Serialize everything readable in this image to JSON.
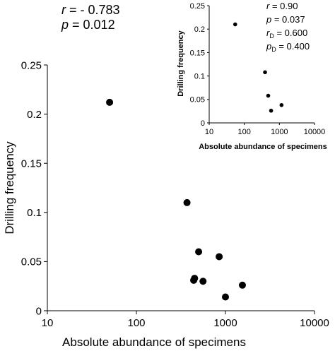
{
  "chart_data": [
    {
      "type": "scatter",
      "xscale": "log",
      "xlim": [
        10,
        10000
      ],
      "ylim": [
        0,
        0.25
      ],
      "xticks": [
        "10",
        "100",
        "1000",
        "10000"
      ],
      "yticks": [
        "0",
        "0.05",
        "0.1",
        "0.15",
        "0.2",
        "0.25"
      ],
      "xlabel": "Absolute abundance of specimens",
      "ylabel": "Drilling frequency",
      "points": [
        {
          "x": 50,
          "y": 0.212
        },
        {
          "x": 370,
          "y": 0.11
        },
        {
          "x": 500,
          "y": 0.06
        },
        {
          "x": 850,
          "y": 0.055
        },
        {
          "x": 450,
          "y": 0.033
        },
        {
          "x": 440,
          "y": 0.031
        },
        {
          "x": 560,
          "y": 0.03
        },
        {
          "x": 1550,
          "y": 0.026
        },
        {
          "x": 1000,
          "y": 0.014
        }
      ],
      "stats": {
        "r_label": "r",
        "r_value": " = - 0.783",
        "p_label": "p",
        "p_value": " = 0.012"
      },
      "marker_color": "#000000"
    },
    {
      "type": "scatter",
      "xscale": "log",
      "xlim": [
        10,
        10000
      ],
      "ylim": [
        0,
        0.25
      ],
      "xticks": [
        "10",
        "100",
        "1000",
        "10000"
      ],
      "yticks": [
        "0",
        "0.05",
        "0.1",
        "0.15",
        "0.2",
        "0.25"
      ],
      "xlabel": "Absolute abundance  of specimens",
      "ylabel": "Drilling frequency",
      "points": [
        {
          "x": 55,
          "y": 0.21
        },
        {
          "x": 390,
          "y": 0.108
        },
        {
          "x": 480,
          "y": 0.058
        },
        {
          "x": 1150,
          "y": 0.038
        },
        {
          "x": 580,
          "y": 0.026
        }
      ],
      "stats": [
        {
          "label": "r",
          "sub": "",
          "value": " = 0.90"
        },
        {
          "label": "p",
          "sub": "",
          "value": " = 0.037"
        },
        {
          "label": "r",
          "sub": "D",
          "value": " = 0.600"
        },
        {
          "label": "p",
          "sub": "D",
          "value": " = 0.400"
        }
      ],
      "marker_color": "#000000"
    }
  ]
}
